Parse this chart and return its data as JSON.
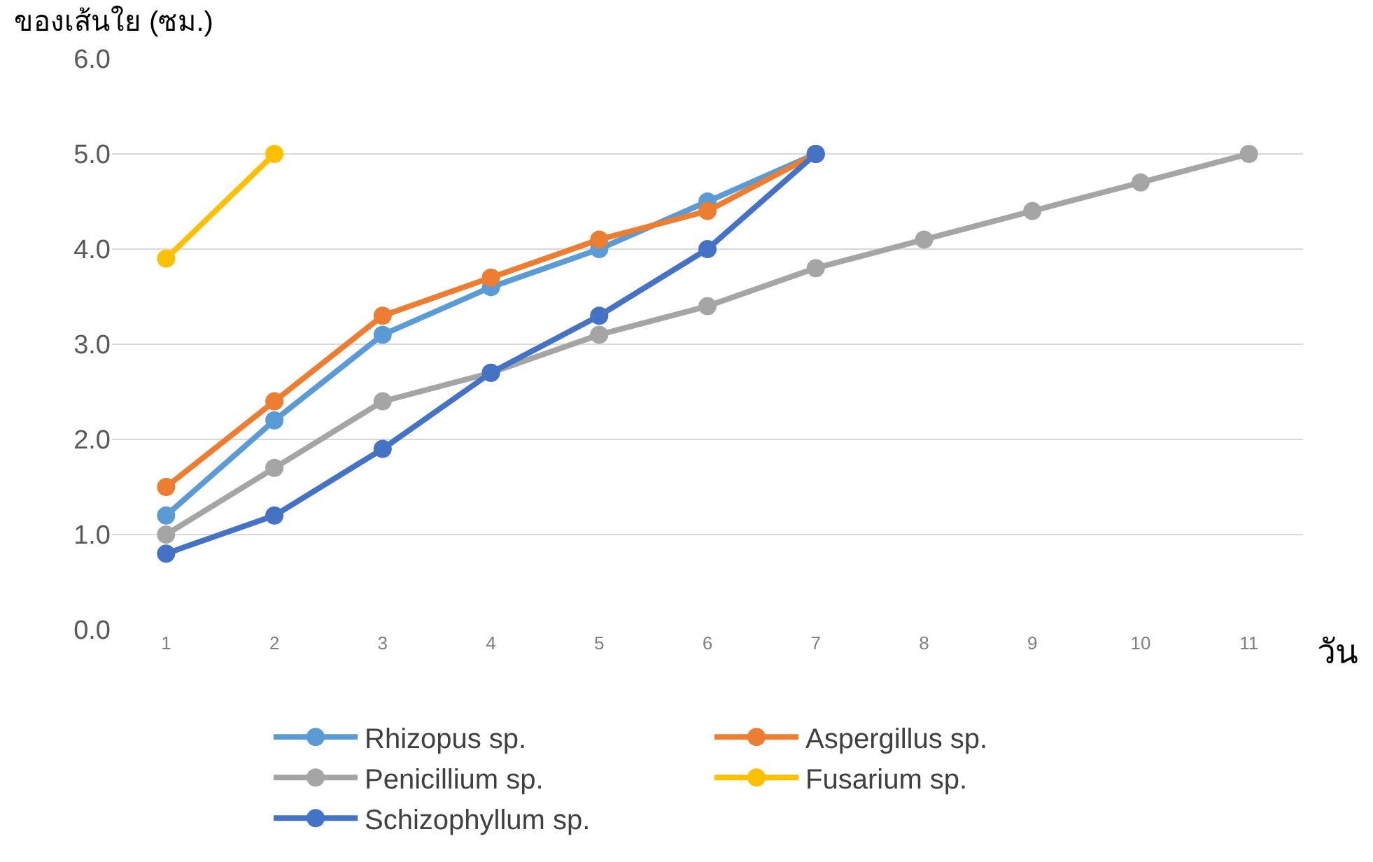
{
  "chart_data": {
    "type": "line",
    "ylabel": "ของเส้นใย (ซม.)",
    "xlabel": "วัน",
    "x": [
      1,
      2,
      3,
      4,
      5,
      6,
      7,
      8,
      9,
      10,
      11
    ],
    "xlim": [
      0.5,
      11.5
    ],
    "xticks": [
      1,
      2,
      3,
      4,
      5,
      6,
      7,
      8,
      9,
      10,
      11
    ],
    "ylim": [
      0,
      6
    ],
    "yticks": [
      {
        "value": 0,
        "label": "0.0"
      },
      {
        "value": 1,
        "label": "1.0"
      },
      {
        "value": 2,
        "label": "2.0"
      },
      {
        "value": 3,
        "label": "3.0"
      },
      {
        "value": 4,
        "label": "4.0"
      },
      {
        "value": 5,
        "label": "5.0"
      },
      {
        "value": 6,
        "label": "6.0"
      }
    ],
    "grid": "y",
    "legend": "bottom",
    "marker": "circle",
    "line_style": "solid",
    "series": [
      {
        "name": "Rhizopus sp.",
        "color": "#5b9bd5",
        "values": [
          1.2,
          2.2,
          3.1,
          3.6,
          4.0,
          4.5,
          5.0,
          null,
          null,
          null,
          null
        ]
      },
      {
        "name": "Aspergillus sp.",
        "color": "#ed7d31",
        "values": [
          1.5,
          2.4,
          3.3,
          3.7,
          4.1,
          4.4,
          5.0,
          null,
          null,
          null,
          null
        ]
      },
      {
        "name": "Penicillium sp.",
        "color": "#a5a5a5",
        "values": [
          1.0,
          1.7,
          2.4,
          2.7,
          3.1,
          3.4,
          3.8,
          4.1,
          4.4,
          4.7,
          5.0
        ]
      },
      {
        "name": "Fusarium sp.",
        "color": "#ffc000",
        "values": [
          3.9,
          5.0,
          null,
          null,
          null,
          null,
          null,
          null,
          null,
          null,
          null
        ]
      },
      {
        "name": "Schizophyllum sp.",
        "color": "#4472c4",
        "values": [
          0.8,
          1.2,
          1.9,
          2.7,
          3.3,
          4.0,
          5.0,
          null,
          null,
          null,
          null
        ]
      }
    ]
  }
}
